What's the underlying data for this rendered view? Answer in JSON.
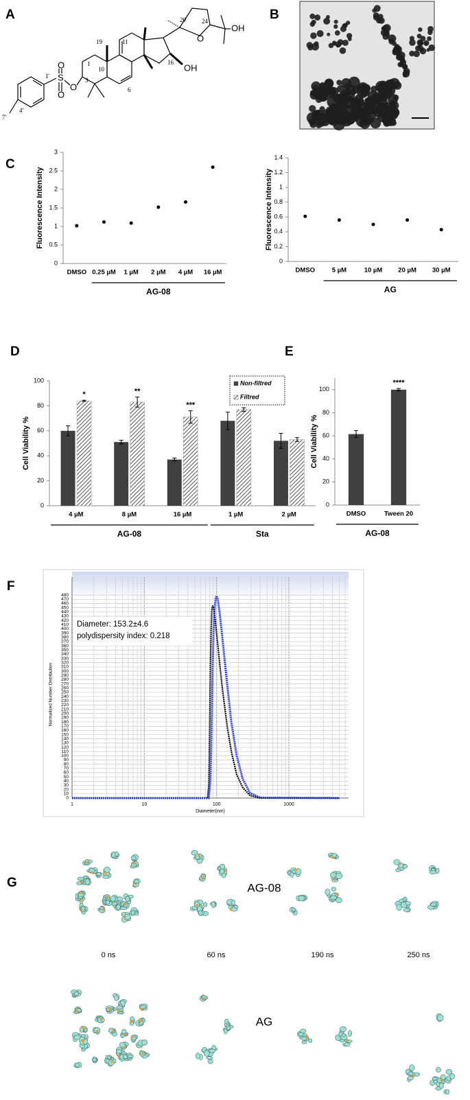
{
  "panel_labels": [
    "A",
    "B",
    "C",
    "D",
    "E",
    "F",
    "G"
  ],
  "structure": {
    "labels": [
      "O",
      "S",
      "O",
      "O",
      "OH",
      "OH",
      "O",
      "1",
      "3",
      "6",
      "10",
      "11",
      "16",
      "19",
      "20",
      "24",
      "1'",
      "4'",
      "7'"
    ]
  },
  "chart_data": [
    {
      "type": "dot",
      "categories": [
        "DMSO",
        "0.25 µM",
        "1 µM",
        "2 µM",
        "4 µM",
        "16 µM"
      ],
      "values": [
        1.02,
        1.12,
        1.09,
        1.52,
        1.66,
        2.6
      ],
      "color": "#000000",
      "ylim": [
        0,
        3
      ],
      "yticks": [
        0,
        0.5,
        1,
        1.5,
        2,
        2.5,
        3
      ],
      "ylabel": "Fluorescence Intensity",
      "groups": [
        {
          "label": "AG-08",
          "span": [
            "0.25 µM",
            "16 µM"
          ]
        }
      ]
    },
    {
      "type": "dot",
      "categories": [
        "DMSO",
        "5 µM",
        "10 µM",
        "20 µM",
        "30 µM"
      ],
      "values": [
        0.61,
        0.56,
        0.5,
        0.56,
        0.43
      ],
      "color": "#000000",
      "ylim": [
        0,
        1.4
      ],
      "yticks": [
        0,
        0.2,
        0.4,
        0.6,
        0.8,
        1,
        1.2,
        1.4
      ],
      "ylabel": "Fluorescence Intensity",
      "groups": [
        {
          "label": "AG",
          "span": [
            "5 µM",
            "30 µM"
          ]
        }
      ]
    },
    {
      "type": "bar",
      "categories": [
        "4 µM",
        "8 µM",
        "16 µM",
        "1 µM",
        "2 µM"
      ],
      "series": [
        {
          "name": "Non-filtred",
          "color": "#404040",
          "hatch": false,
          "values": [
            60,
            51,
            37,
            68,
            52
          ],
          "errors": [
            4,
            1.5,
            1.2,
            7,
            6
          ]
        },
        {
          "name": "Filtred",
          "color": "#555555",
          "hatch": true,
          "values": [
            84,
            83,
            71,
            77,
            53
          ],
          "errors": [
            0.5,
            4,
            5,
            1.5,
            1.5
          ]
        }
      ],
      "significance": [
        "*",
        "**",
        "***",
        null,
        null
      ],
      "ylim": [
        0,
        100
      ],
      "yticks": [
        0,
        20,
        40,
        60,
        80,
        100
      ],
      "ylabel": "Cell Viability %",
      "legend": "top-right",
      "groups": [
        {
          "label": "AG-08",
          "span": [
            "4 µM",
            "16 µM"
          ]
        },
        {
          "label": "Sta",
          "span": [
            "1 µM",
            "2 µM"
          ]
        }
      ]
    },
    {
      "type": "bar",
      "categories": [
        "DMSO",
        "Tween 20"
      ],
      "series": [
        {
          "color": "#404040",
          "hatch": false,
          "values": [
            61.5,
            100
          ],
          "errors": [
            3,
            1
          ]
        }
      ],
      "significance": [
        null,
        "****"
      ],
      "ylim": [
        0,
        110
      ],
      "yticks": [
        0,
        20,
        40,
        60,
        80,
        100
      ],
      "ylabel": "Cell Viability %",
      "groups": [
        {
          "label": "AG-08",
          "span": [
            "DMSO",
            "Tween 20"
          ]
        }
      ]
    },
    {
      "type": "line",
      "xscale": "log",
      "xlim": [
        1,
        6700
      ],
      "xticks": [
        1,
        10,
        100,
        1000
      ],
      "ylim": [
        0,
        490
      ],
      "yticks": [
        0,
        10,
        20,
        30,
        40,
        50,
        60,
        70,
        80,
        90,
        100,
        110,
        120,
        130,
        140,
        150,
        160,
        170,
        180,
        190,
        200,
        210,
        220,
        230,
        240,
        250,
        260,
        270,
        280,
        290,
        300,
        310,
        320,
        330,
        340,
        350,
        360,
        370,
        380,
        390,
        400,
        410,
        420,
        430,
        440,
        450,
        460,
        470,
        480
      ],
      "grid": true,
      "minor_grid": true,
      "xlabel": "Diameter(nm)",
      "ylabel": "Normalized Number Distribution",
      "annotations": [
        "Diameter: 153.2±4.6",
        "polydispersity index: 0.218"
      ],
      "series": [
        {
          "color": "#000000",
          "x": [
            1,
            75,
            78,
            80,
            82,
            84,
            86,
            88,
            92,
            96,
            100,
            110,
            120,
            140,
            160,
            190,
            230,
            290,
            400,
            5000
          ],
          "values": [
            0,
            0,
            30,
            150,
            300,
            400,
            445,
            455,
            445,
            420,
            390,
            320,
            260,
            170,
            110,
            55,
            25,
            6,
            0,
            0
          ]
        },
        {
          "color": "#2a3fd4",
          "x": [
            1,
            78,
            82,
            85,
            88,
            91,
            94,
            97,
            100,
            104,
            110,
            120,
            140,
            160,
            190,
            230,
            290,
            400,
            5000
          ],
          "values": [
            0,
            0,
            40,
            150,
            300,
            400,
            450,
            472,
            478,
            470,
            440,
            380,
            270,
            180,
            100,
            45,
            12,
            1,
            0
          ]
        }
      ]
    }
  ],
  "simulation": {
    "rows": [
      "AG-08",
      "AG"
    ],
    "times": [
      "0 ns",
      "60 ns",
      "190 ns",
      "250 ns"
    ]
  }
}
